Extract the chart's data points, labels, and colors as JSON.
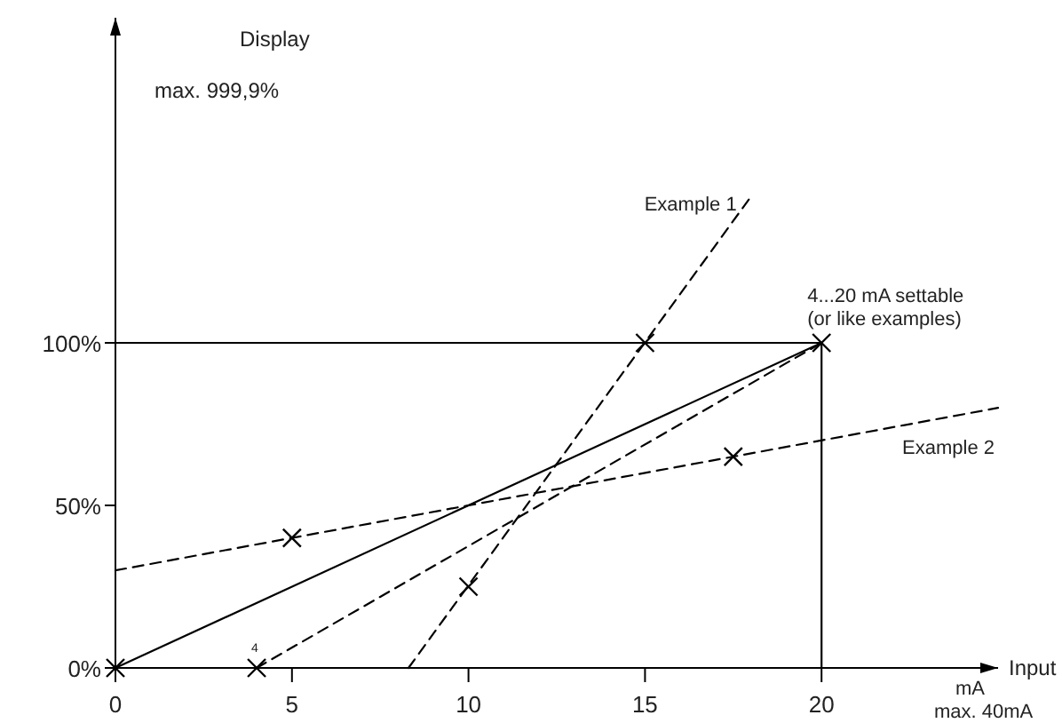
{
  "chart_data": {
    "type": "line",
    "ylabel": "Display",
    "xlabel": "Input",
    "xlim": [
      0,
      25
    ],
    "ylim": [
      0,
      200
    ],
    "xticks": [
      0,
      5,
      10,
      15,
      20
    ],
    "yticks": [
      {
        "value": 0,
        "label": "0%"
      },
      {
        "value": 50,
        "label": "50%"
      },
      {
        "value": 100,
        "label": "100%"
      }
    ],
    "grid": false,
    "series": [
      {
        "color": "#000000",
        "x": [
          0,
          20,
          20
        ],
        "values": [
          100,
          100,
          0
        ],
        "line_style": "solid",
        "marker": "none"
      },
      {
        "color": "#000000",
        "x": [
          0,
          20
        ],
        "values": [
          0,
          100
        ],
        "line_style": "solid",
        "marker": "none"
      },
      {
        "color": "#000000",
        "x": [
          4,
          20
        ],
        "values": [
          0,
          100
        ],
        "line_style": "dashed",
        "marker": "none"
      },
      {
        "name": "Example 1",
        "color": "#000000",
        "x": [
          8.3,
          18
        ],
        "values": [
          0,
          145
        ],
        "line_style": "dashed",
        "marker": "none"
      },
      {
        "name": "Example 2",
        "color": "#000000",
        "x": [
          0,
          25
        ],
        "values": [
          30,
          80
        ],
        "line_style": "dashed",
        "marker": "none"
      },
      {
        "type": "scatter",
        "color": "#000000",
        "x": [
          0,
          4,
          20,
          10,
          15,
          5,
          17.5
        ],
        "values": [
          0,
          0,
          100,
          25,
          100,
          40,
          65
        ],
        "marker": "cross"
      }
    ],
    "annotations": [
      "max. 999,9%",
      "mA",
      "max. 40mA",
      {
        "text": "4",
        "x": 4,
        "y": 0
      },
      {
        "text": "4...20 mA settable\n(or like examples)",
        "x": 20,
        "y": 100
      }
    ]
  }
}
